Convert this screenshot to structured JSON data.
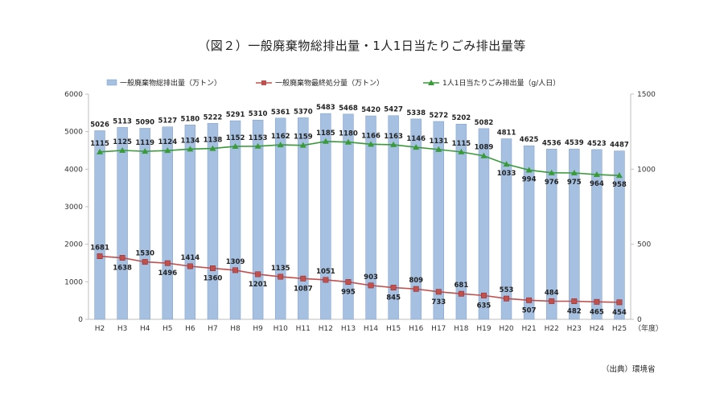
{
  "title": "（図２）一般廃棄物総排出量・1人1日当たりごみ排出量等",
  "source": "（出典）環境省",
  "colors": {
    "bar": "#a5c0e0",
    "bar_edge": "#7e9fca",
    "landfill": "#c0504d",
    "percapita": "#3a9a3a",
    "axis": "#bfbfbf"
  },
  "chart_data": {
    "type": "bar",
    "categories": [
      "H2",
      "H3",
      "H4",
      "H5",
      "H6",
      "H7",
      "H8",
      "H9",
      "H10",
      "H11",
      "H12",
      "H13",
      "H14",
      "H15",
      "H16",
      "H17",
      "H18",
      "H19",
      "H20",
      "H21",
      "H22",
      "H23",
      "H24",
      "H25"
    ],
    "x_unit": "（年度）",
    "y_left": {
      "min": 0,
      "max": 6000,
      "ticks": [
        "0",
        "1000",
        "2000",
        "3000",
        "4000",
        "5000",
        "6000"
      ]
    },
    "y_right": {
      "min": 0,
      "max": 1500,
      "ticks": [
        "0",
        "500",
        "1000",
        "1500"
      ]
    },
    "legend": [
      "一般廃棄物総排出量（万トン）",
      "一般廃棄物最終処分量（万トン）",
      "1人1日当たりごみ排出量（g/人日）"
    ],
    "series": [
      {
        "name": "一般廃棄物総排出量（万トン）",
        "type": "bar",
        "axis": "left",
        "values": [
          5026,
          5113,
          5090,
          5127,
          5180,
          5222,
          5291,
          5310,
          5361,
          5370,
          5483,
          5468,
          5420,
          5427,
          5338,
          5272,
          5202,
          5082,
          4811,
          4625,
          4536,
          4539,
          4523,
          4487
        ]
      },
      {
        "name": "一般廃棄物最終処分量（万トン）",
        "type": "line",
        "axis": "left",
        "marker": "square",
        "values": [
          1681,
          1638,
          1530,
          1496,
          1414,
          1360,
          1309,
          1201,
          1135,
          1087,
          1051,
          995,
          903,
          845,
          809,
          733,
          681,
          635,
          553,
          507,
          484,
          482,
          465,
          454
        ]
      },
      {
        "name": "1人1日当たりごみ排出量（g/人日）",
        "type": "line",
        "axis": "right",
        "marker": "triangle",
        "values": [
          1115,
          1125,
          1119,
          1124,
          1134,
          1138,
          1152,
          1153,
          1162,
          1159,
          1185,
          1180,
          1166,
          1163,
          1146,
          1131,
          1115,
          1089,
          1033,
          994,
          976,
          975,
          964,
          958
        ]
      }
    ]
  }
}
